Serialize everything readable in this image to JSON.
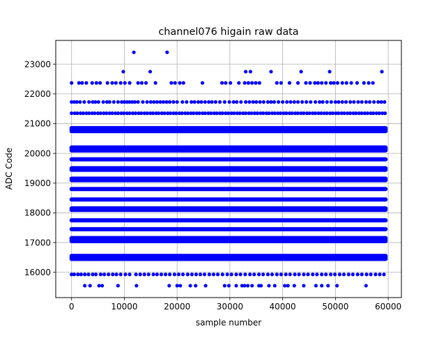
{
  "chart_data": {
    "type": "scatter",
    "title": "channel076 higain raw data",
    "xlabel": "sample number",
    "ylabel": "ADC Code",
    "xlim": [
      -3000,
      62500
    ],
    "ylim": [
      15150,
      23800
    ],
    "xticks": [
      0,
      10000,
      20000,
      30000,
      40000,
      50000,
      60000
    ],
    "xtick_labels": [
      "0",
      "10000",
      "20000",
      "30000",
      "40000",
      "50000",
      "60000"
    ],
    "yticks": [
      16000,
      17000,
      18000,
      19000,
      20000,
      21000,
      22000,
      23000
    ],
    "ytick_labels": [
      "16000",
      "17000",
      "18000",
      "19000",
      "20000",
      "21000",
      "22000",
      "23000"
    ],
    "grid": true,
    "marker_color": "#0000ff",
    "x_range": [
      0,
      59500
    ],
    "dense_levels": [
      16450,
      16500,
      16550,
      17050,
      17100,
      17150,
      17450,
      17750,
      18100,
      18150,
      18450,
      18800,
      19100,
      19150,
      19450,
      19500,
      19800,
      20100,
      20150,
      20200,
      20750,
      20800,
      20850
    ],
    "sparse_levels": [
      {
        "y": 15930,
        "x": [
          0,
          500,
          1200,
          1800,
          2500,
          3200,
          4000,
          4600,
          5500,
          6200,
          7000,
          7800,
          8500,
          9300,
          10200,
          11000,
          12200,
          13000,
          13800,
          14600,
          15500,
          16200,
          17000,
          17800,
          18600,
          19500,
          20300,
          21100,
          22000,
          22800,
          23600,
          24400,
          25200,
          26100,
          26900,
          27700,
          28600,
          29500,
          30300,
          31200,
          32000,
          32900,
          33800,
          34600,
          35500,
          36300,
          37200,
          38000,
          38900,
          39700,
          40600,
          41400,
          42300,
          43100,
          44000,
          44800,
          45700,
          46500,
          47400,
          48200,
          49100,
          49900,
          50800,
          51600,
          52500,
          53300,
          54200,
          55000,
          55900,
          56700,
          57600,
          58400,
          59200
        ]
      },
      {
        "y": 15550,
        "x": [
          2500,
          3500,
          5200,
          5800,
          8800,
          12300,
          18500,
          20000,
          20600,
          22500,
          23500,
          25400,
          29000,
          29800,
          31200,
          32300,
          32800,
          33400,
          34200,
          35500,
          35900,
          37400,
          38500,
          40400,
          41000,
          42200,
          44000,
          46300,
          47400,
          48600,
          50300,
          55800
        ]
      },
      {
        "y": 21350,
        "x": [
          0,
          600,
          1100,
          1700,
          2200,
          2800,
          3300,
          3900,
          4400,
          5000,
          5500,
          6100,
          6600,
          7200,
          7700,
          8300,
          8800,
          9400,
          9900,
          10500,
          11000,
          11600,
          12100,
          12700,
          13200,
          13800,
          14300,
          14900,
          15400,
          16000,
          16500,
          17100,
          17600,
          18200,
          18700,
          19300,
          19800,
          20400,
          20900,
          21500,
          22000,
          22600,
          23100,
          23700,
          24200,
          24800,
          25300,
          25900,
          26400,
          27000,
          27500,
          28100,
          28600,
          29200,
          29700,
          30300,
          30800,
          31400,
          31900,
          32500,
          33000,
          33600,
          34100,
          34700,
          35200,
          35800,
          36300,
          36900,
          37400,
          38000,
          38500,
          39100,
          39600,
          40200,
          40700,
          41300,
          41800,
          42400,
          42900,
          43500,
          44000,
          44600,
          45100,
          45700,
          46200,
          46800,
          47300,
          47900,
          48400,
          49000,
          49500,
          50100,
          50600,
          51200,
          51700,
          52300,
          52800,
          53400,
          53900,
          54500,
          55000,
          55600,
          56100,
          56700,
          57200,
          57800,
          58300,
          58900,
          59400
        ]
      },
      {
        "y": 21730,
        "x": [
          0,
          500,
          1000,
          1600,
          2400,
          3300,
          4000,
          4500,
          5100,
          6000,
          6700,
          7200,
          8000,
          8800,
          9500,
          10000,
          10500,
          11000,
          11500,
          12000,
          12600,
          13500,
          14300,
          15000,
          15600,
          16200,
          16800,
          17400,
          18000,
          18600,
          19300,
          20000,
          21000,
          21800,
          22700,
          23300,
          24000,
          24600,
          25300,
          26000,
          26600,
          27300,
          28100,
          29000,
          29900,
          30700,
          31300,
          32100,
          33000,
          33700,
          34400,
          35000,
          35700,
          36400,
          37200,
          37800,
          38400,
          39200,
          40000,
          40800,
          41500,
          42200,
          42900,
          43700,
          44500,
          45300,
          46200,
          47000,
          47600,
          48400,
          49200,
          50000,
          50600,
          51300,
          52000,
          52800,
          53500,
          54300,
          55000,
          55800,
          56500,
          57300,
          58100,
          58700,
          59300
        ]
      },
      {
        "y": 22370,
        "x": [
          0,
          1400,
          2000,
          2800,
          3900,
          4700,
          5400,
          6800,
          7700,
          8400,
          9300,
          10100,
          11000,
          12600,
          13300,
          14100,
          15900,
          18900,
          19600,
          20500,
          21200,
          24800,
          28500,
          29200,
          30100,
          31700,
          32800,
          33500,
          34200,
          34900,
          35600,
          38900,
          39700,
          41300,
          42900,
          44400,
          45200,
          46100,
          46700,
          47400,
          48200,
          49100,
          49700,
          50400,
          51300,
          52100,
          53000,
          54100,
          55400,
          56300,
          57100
        ]
      },
      {
        "y": 22750,
        "x": [
          9800,
          14900,
          33000,
          33900,
          37800,
          43500,
          48900,
          58800
        ]
      },
      {
        "y": 23400,
        "x": [
          11800,
          18100
        ]
      }
    ]
  }
}
